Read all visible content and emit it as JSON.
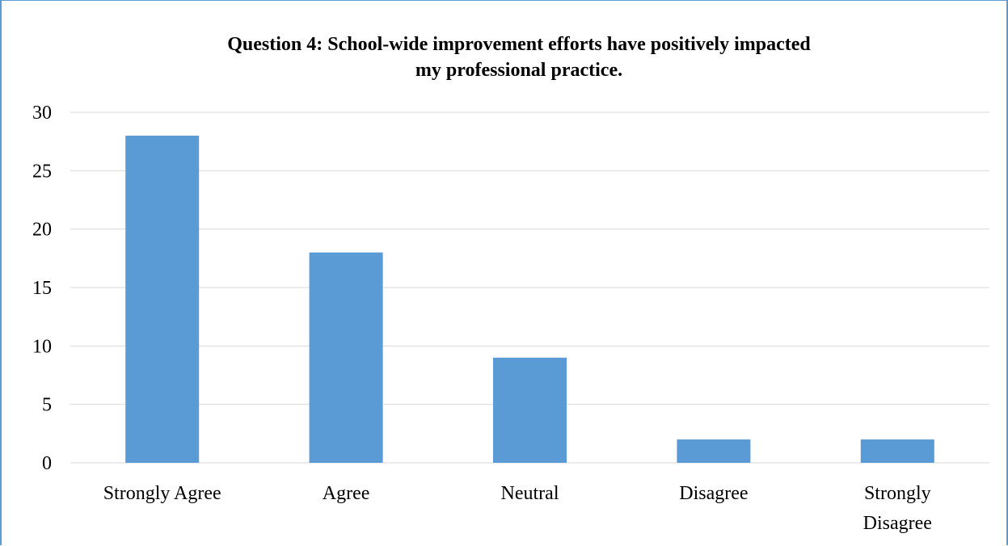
{
  "chart_data": {
    "type": "bar",
    "title": "Question 4: School-wide improvement efforts have positively impacted\nmy professional practice.",
    "categories": [
      "Strongly Agree",
      "Agree",
      "Neutral",
      "Disagree",
      "Strongly Disagree"
    ],
    "category_lines": [
      [
        "Strongly Agree"
      ],
      [
        "Agree"
      ],
      [
        "Neutral"
      ],
      [
        "Disagree"
      ],
      [
        "Strongly",
        "Disagree"
      ]
    ],
    "values": [
      28,
      18,
      9,
      2,
      2
    ],
    "ylim": [
      0,
      30
    ],
    "yticks": [
      "0",
      "5",
      "10",
      "15",
      "20",
      "25",
      "30"
    ],
    "ytick_values": [
      0,
      5,
      10,
      15,
      20,
      25,
      30
    ],
    "grid": true,
    "bar_color": "#5b9bd5",
    "grid_color": "#d9d9d9",
    "frame_color": "#5b9bd5"
  }
}
